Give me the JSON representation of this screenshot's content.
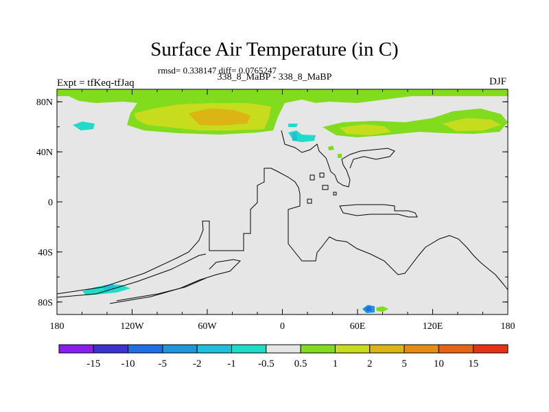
{
  "title": "Surface Air Temperature (in C)",
  "subtitle_stats": "rmsd= 0.338147 diff= 0.0765247",
  "subtitle_runs": "338_8_MaBP - 338_8_MaBP",
  "left_label": "Expt = tfKeq-tfJaq",
  "right_label": "DJF",
  "map": {
    "background_color": "#e6e6e6",
    "lon_ticks": [
      "180",
      "120W",
      "60W",
      "0",
      "60E",
      "120E",
      "180"
    ],
    "lat_ticks": [
      "80N",
      "40N",
      "0",
      "40S",
      "80S"
    ]
  },
  "colorbar": {
    "labels": [
      "-15",
      "-10",
      "-5",
      "-2",
      "-1",
      "-0.5",
      "0.5",
      "1",
      "2",
      "5",
      "10",
      "15"
    ],
    "colors": [
      "#8a1ef0",
      "#3c32d2",
      "#1e6ee6",
      "#1e96dc",
      "#1ebedc",
      "#1edcc8",
      "#e6e6e6",
      "#82dc1e",
      "#c8dc1e",
      "#dcb414",
      "#e68c14",
      "#e66414",
      "#e63214"
    ]
  }
}
